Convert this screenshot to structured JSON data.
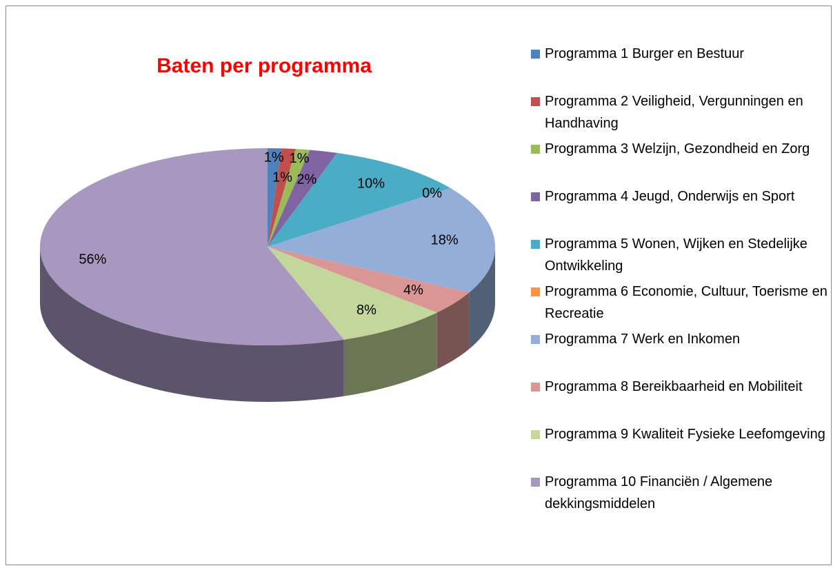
{
  "chart_data": {
    "type": "pie3d",
    "title": "Baten per programma",
    "categories": [
      "Programma 1 Burger en Bestuur",
      "Programma 2 Veiligheid, Vergunningen en Handhaving",
      "Programma 3 Welzijn, Gezondheid en Zorg",
      "Programma 4 Jeugd, Onderwijs en Sport",
      "Programma 5 Wonen, Wijken en Stedelijke Ontwikkeling",
      "Programma 6 Economie, Cultuur, Toerisme en Recreatie",
      "Programma 7 Werk en Inkomen",
      "Programma 8 Bereikbaarheid en Mobiliteit",
      "Programma 9 Kwaliteit Fysieke Leefomgeving",
      "Programma 10 Financiën / Algemene dekkingsmiddelen"
    ],
    "values": [
      1,
      1,
      1,
      2,
      10,
      0,
      18,
      4,
      8,
      56
    ],
    "value_labels": [
      "1%",
      "1%",
      "1%",
      "2%",
      "10%",
      "0%",
      "18%",
      "4%",
      "8%",
      "56%"
    ],
    "colors": [
      "#4F81BD",
      "#C0504D",
      "#9BBB59",
      "#8064A2",
      "#4BACC6",
      "#F79646",
      "#95AED8",
      "#D99694",
      "#C3D69B",
      "#A898C0"
    ],
    "legend": "right"
  }
}
